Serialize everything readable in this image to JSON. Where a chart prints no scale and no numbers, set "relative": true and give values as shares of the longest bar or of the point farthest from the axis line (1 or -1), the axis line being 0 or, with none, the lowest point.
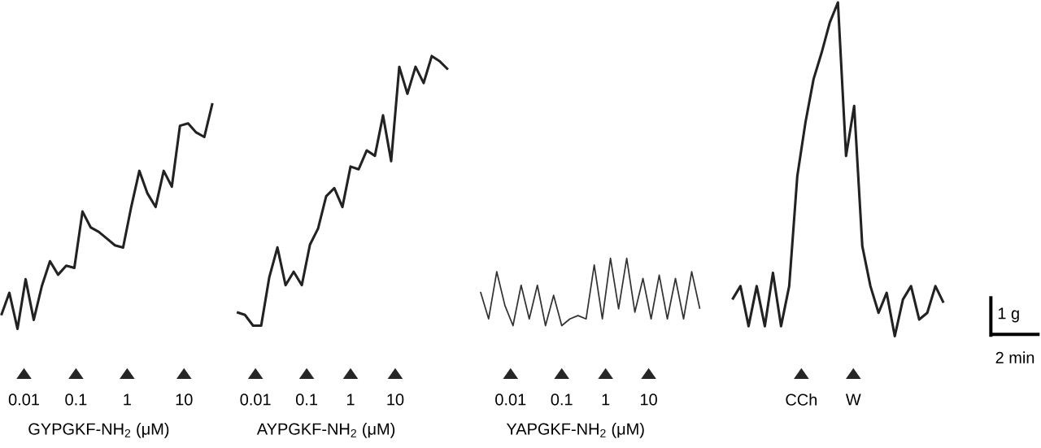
{
  "chart_data": [
    {
      "type": "line",
      "relative": true,
      "categories": [
        null,
        null,
        null,
        null,
        null,
        null,
        null,
        null,
        null,
        null,
        null,
        null,
        null,
        null,
        null,
        null,
        null,
        null,
        null,
        null,
        null,
        null,
        null,
        null,
        null,
        null,
        null
      ],
      "series": [
        {
          "color": "#222222",
          "values": [
            0.06,
            0.16,
            0,
            0.22,
            0.04,
            0.19,
            0.3,
            0.24,
            0.28,
            0.27,
            0.52,
            0.45,
            0.43,
            0.4,
            0.37,
            0.36,
            0.54,
            0.7,
            0.6,
            0.54,
            0.7,
            0.63,
            0.9,
            0.91,
            0.87,
            0.85,
            1
          ]
        }
      ],
      "annotations": [
        "0.01",
        "0.1",
        "1",
        "10",
        "GYPGKF-NH$_{2}$ (μM)"
      ]
    },
    {
      "type": "line",
      "relative": true,
      "categories": [
        null,
        null,
        null,
        null,
        null,
        null,
        null,
        null,
        null,
        null,
        null,
        null,
        null,
        null,
        null,
        null,
        null,
        null,
        null,
        null,
        null,
        null,
        null,
        null,
        null,
        null,
        null
      ],
      "series": [
        {
          "color": "#222222",
          "values": [
            0.05,
            0.04,
            0,
            0,
            0.18,
            0.29,
            0.15,
            0.2,
            0.15,
            0.3,
            0.36,
            0.48,
            0.51,
            0.44,
            0.59,
            0.58,
            0.65,
            0.63,
            0.78,
            0.61,
            0.96,
            0.86,
            0.96,
            0.9,
            1,
            0.98,
            0.95
          ]
        }
      ],
      "annotations": [
        "0.01",
        "0.1",
        "1",
        "10",
        "AYPGKF-NH$_{2}$ (μM)"
      ]
    },
    {
      "type": "line",
      "relative": true,
      "categories": [
        null,
        null,
        null,
        null,
        null,
        null,
        null,
        null,
        null,
        null,
        null,
        null,
        null,
        null,
        null,
        null,
        null,
        null,
        null,
        null,
        null,
        null,
        null,
        null,
        null,
        null,
        null,
        null
      ],
      "series": [
        {
          "color": "#333333",
          "values": [
            0.5,
            0.1,
            0.8,
            0.3,
            0,
            0.6,
            0.1,
            0.6,
            0,
            0.45,
            0,
            0.1,
            0.15,
            0.1,
            0.9,
            0.1,
            1,
            0.25,
            1,
            0.2,
            0.7,
            0.1,
            0.75,
            0.1,
            0.7,
            0.1,
            0.8,
            0.25
          ]
        }
      ],
      "annotations": [
        "0.01",
        "0.1",
        "1",
        "10",
        "YAPGKF-NH$_{2}$ (μM)"
      ]
    },
    {
      "type": "line",
      "relative": true,
      "categories": [
        null,
        null,
        null,
        null,
        null,
        null,
        null,
        null,
        null,
        null,
        null,
        null,
        null,
        null,
        null,
        null,
        null,
        null,
        null,
        null,
        null,
        null,
        null,
        null,
        null,
        null,
        null
      ],
      "series": [
        {
          "color": "#222222",
          "values": [
            0.11,
            0.15,
            0.03,
            0.15,
            0.03,
            0.19,
            0.03,
            0.15,
            0.48,
            0.64,
            0.77,
            0.85,
            0.94,
            1,
            0.54,
            0.69,
            0.27,
            0.15,
            0.07,
            0.13,
            0,
            0.11,
            0.15,
            0.05,
            0.07,
            0.15,
            0.1
          ]
        }
      ],
      "annotations": [
        "CCh",
        "W",
        "1 g",
        "2 min"
      ]
    }
  ]
}
